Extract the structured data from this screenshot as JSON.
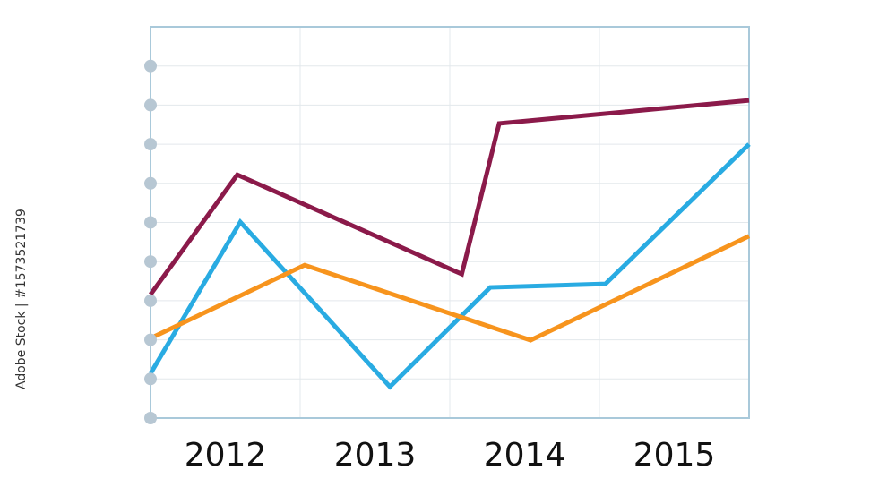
{
  "chart_data": {
    "type": "line",
    "watermark": "Adobe Stock | #1573521739",
    "xlim": [
      2012,
      2016
    ],
    "xticks": [
      {
        "value": 2012.5,
        "label": "2012"
      },
      {
        "value": 2013.5,
        "label": "2013"
      },
      {
        "value": 2014.5,
        "label": "2014"
      },
      {
        "value": 2015.5,
        "label": "2015"
      }
    ],
    "x_grid_lines": [
      2013,
      2014,
      2015
    ],
    "ylim": [
      0,
      10
    ],
    "yticks": [
      0,
      1,
      2,
      3,
      4,
      5,
      6,
      7,
      8,
      9
    ],
    "grid": true,
    "series": [
      {
        "color": "#8b1a4a",
        "x": [
          2012.0,
          2012.58,
          2014.08,
          2014.33,
          2016.0
        ],
        "values": [
          3.16,
          6.22,
          3.68,
          7.53,
          8.12
        ]
      },
      {
        "color": "#29abe2",
        "x": [
          2012.0,
          2012.6,
          2013.6,
          2014.27,
          2015.04,
          2016.0
        ],
        "values": [
          1.14,
          5.01,
          0.8,
          3.34,
          3.43,
          7.0
        ]
      },
      {
        "color": "#f7941d",
        "x": [
          2012.0,
          2013.03,
          2014.54,
          2016.0
        ],
        "values": [
          2.04,
          3.91,
          1.99,
          4.65
        ]
      }
    ]
  }
}
